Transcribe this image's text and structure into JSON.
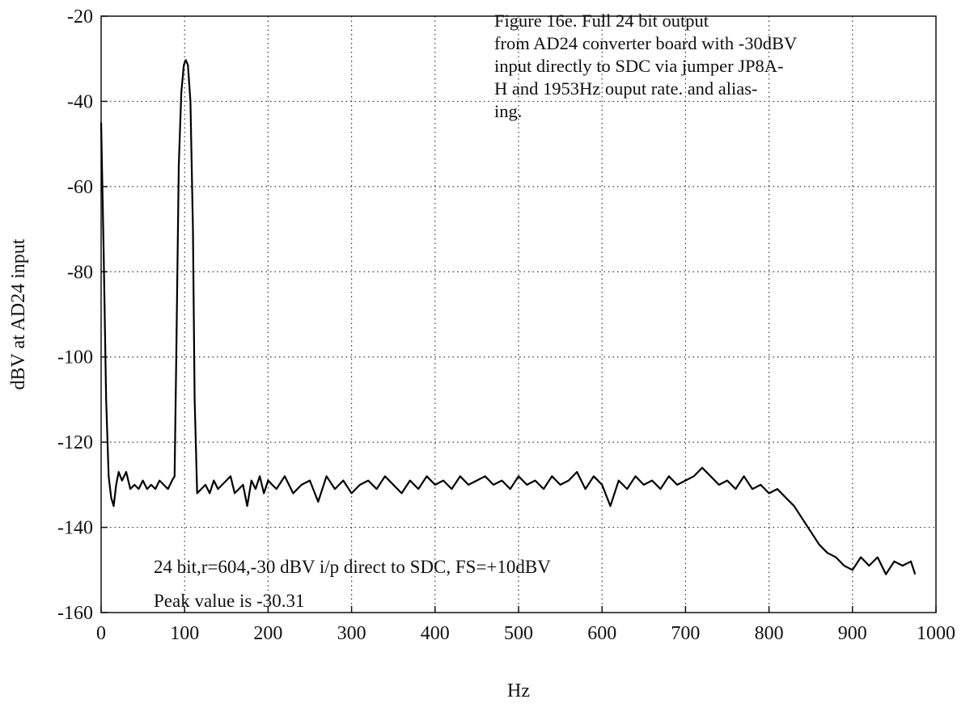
{
  "caption": {
    "lines": [
      "Figure 16e.    Full 24 bit output",
      "from AD24 converter board with -30dBV",
      "input directly to SDC via jumper JP8A-",
      "H and 1953Hz ouput rate. and alias-",
      "ing."
    ]
  },
  "annotations": {
    "line1": "24 bit,r=604,-30 dBV i/p direct to SDC, FS=+10dBV",
    "line2": "Peak value is -30.31"
  },
  "chart_data": {
    "type": "line",
    "title": "",
    "xlabel": "Hz",
    "ylabel": "dBV at AD24 input",
    "xlim": [
      0,
      1000
    ],
    "ylim": [
      -160,
      -20
    ],
    "x_ticks": [
      0,
      100,
      200,
      300,
      400,
      500,
      600,
      700,
      800,
      900,
      1000
    ],
    "y_ticks": [
      -20,
      -40,
      -60,
      -80,
      -100,
      -120,
      -140,
      -160
    ],
    "grid": true,
    "grid_style": "dotted",
    "series": [
      {
        "color": "#000000",
        "x": [
          0,
          3,
          6,
          9,
          12,
          15,
          18,
          21,
          25,
          30,
          35,
          40,
          45,
          50,
          55,
          60,
          65,
          70,
          75,
          80,
          85,
          88,
          90,
          93,
          96,
          99,
          101.4,
          104,
          107,
          110,
          112,
          115,
          120,
          125,
          130,
          135,
          140,
          145,
          150,
          155,
          160,
          165,
          170,
          175,
          180,
          185,
          190,
          195,
          200,
          210,
          220,
          230,
          240,
          250,
          260,
          270,
          280,
          290,
          300,
          310,
          320,
          330,
          340,
          350,
          360,
          370,
          380,
          390,
          400,
          410,
          420,
          430,
          440,
          450,
          460,
          470,
          480,
          490,
          500,
          510,
          520,
          530,
          540,
          550,
          560,
          570,
          580,
          590,
          600,
          610,
          620,
          630,
          640,
          650,
          660,
          670,
          680,
          690,
          700,
          710,
          715,
          720,
          730,
          740,
          750,
          760,
          770,
          780,
          790,
          800,
          810,
          820,
          830,
          840,
          850,
          860,
          870,
          880,
          890,
          900,
          910,
          920,
          930,
          940,
          950,
          960,
          970,
          975
        ],
        "y": [
          -45,
          -75,
          -110,
          -128,
          -133,
          -135,
          -130,
          -127,
          -129,
          -127,
          -131,
          -130,
          -131,
          -129,
          -131,
          -130,
          -131,
          -129,
          -130,
          -131,
          -129,
          -128,
          -100,
          -55,
          -38,
          -31.5,
          -30.31,
          -31.5,
          -40,
          -70,
          -110,
          -132,
          -131,
          -130,
          -132,
          -129,
          -131,
          -130,
          -129,
          -128,
          -132,
          -131,
          -130,
          -135,
          -129,
          -131,
          -128,
          -132,
          -129,
          -131,
          -128,
          -132,
          -130,
          -129,
          -134,
          -128,
          -131,
          -129,
          -132,
          -130,
          -129,
          -131,
          -128,
          -130,
          -132,
          -129,
          -131,
          -128,
          -130,
          -129,
          -131,
          -128,
          -130,
          -129,
          -128,
          -130,
          -129,
          -131,
          -128,
          -130,
          -129,
          -131,
          -128,
          -130,
          -129,
          -127,
          -131,
          -128,
          -130,
          -135,
          -129,
          -131,
          -128,
          -130,
          -129,
          -131,
          -128,
          -130,
          -129,
          -128,
          -127,
          -126,
          -128,
          -130,
          -129,
          -131,
          -128,
          -131,
          -130,
          -132,
          -131,
          -133,
          -135,
          -138,
          -141,
          -144,
          -146,
          -147,
          -149,
          -150,
          -147,
          -149,
          -147,
          -151,
          -148,
          -149,
          -148,
          -151
        ]
      }
    ]
  }
}
